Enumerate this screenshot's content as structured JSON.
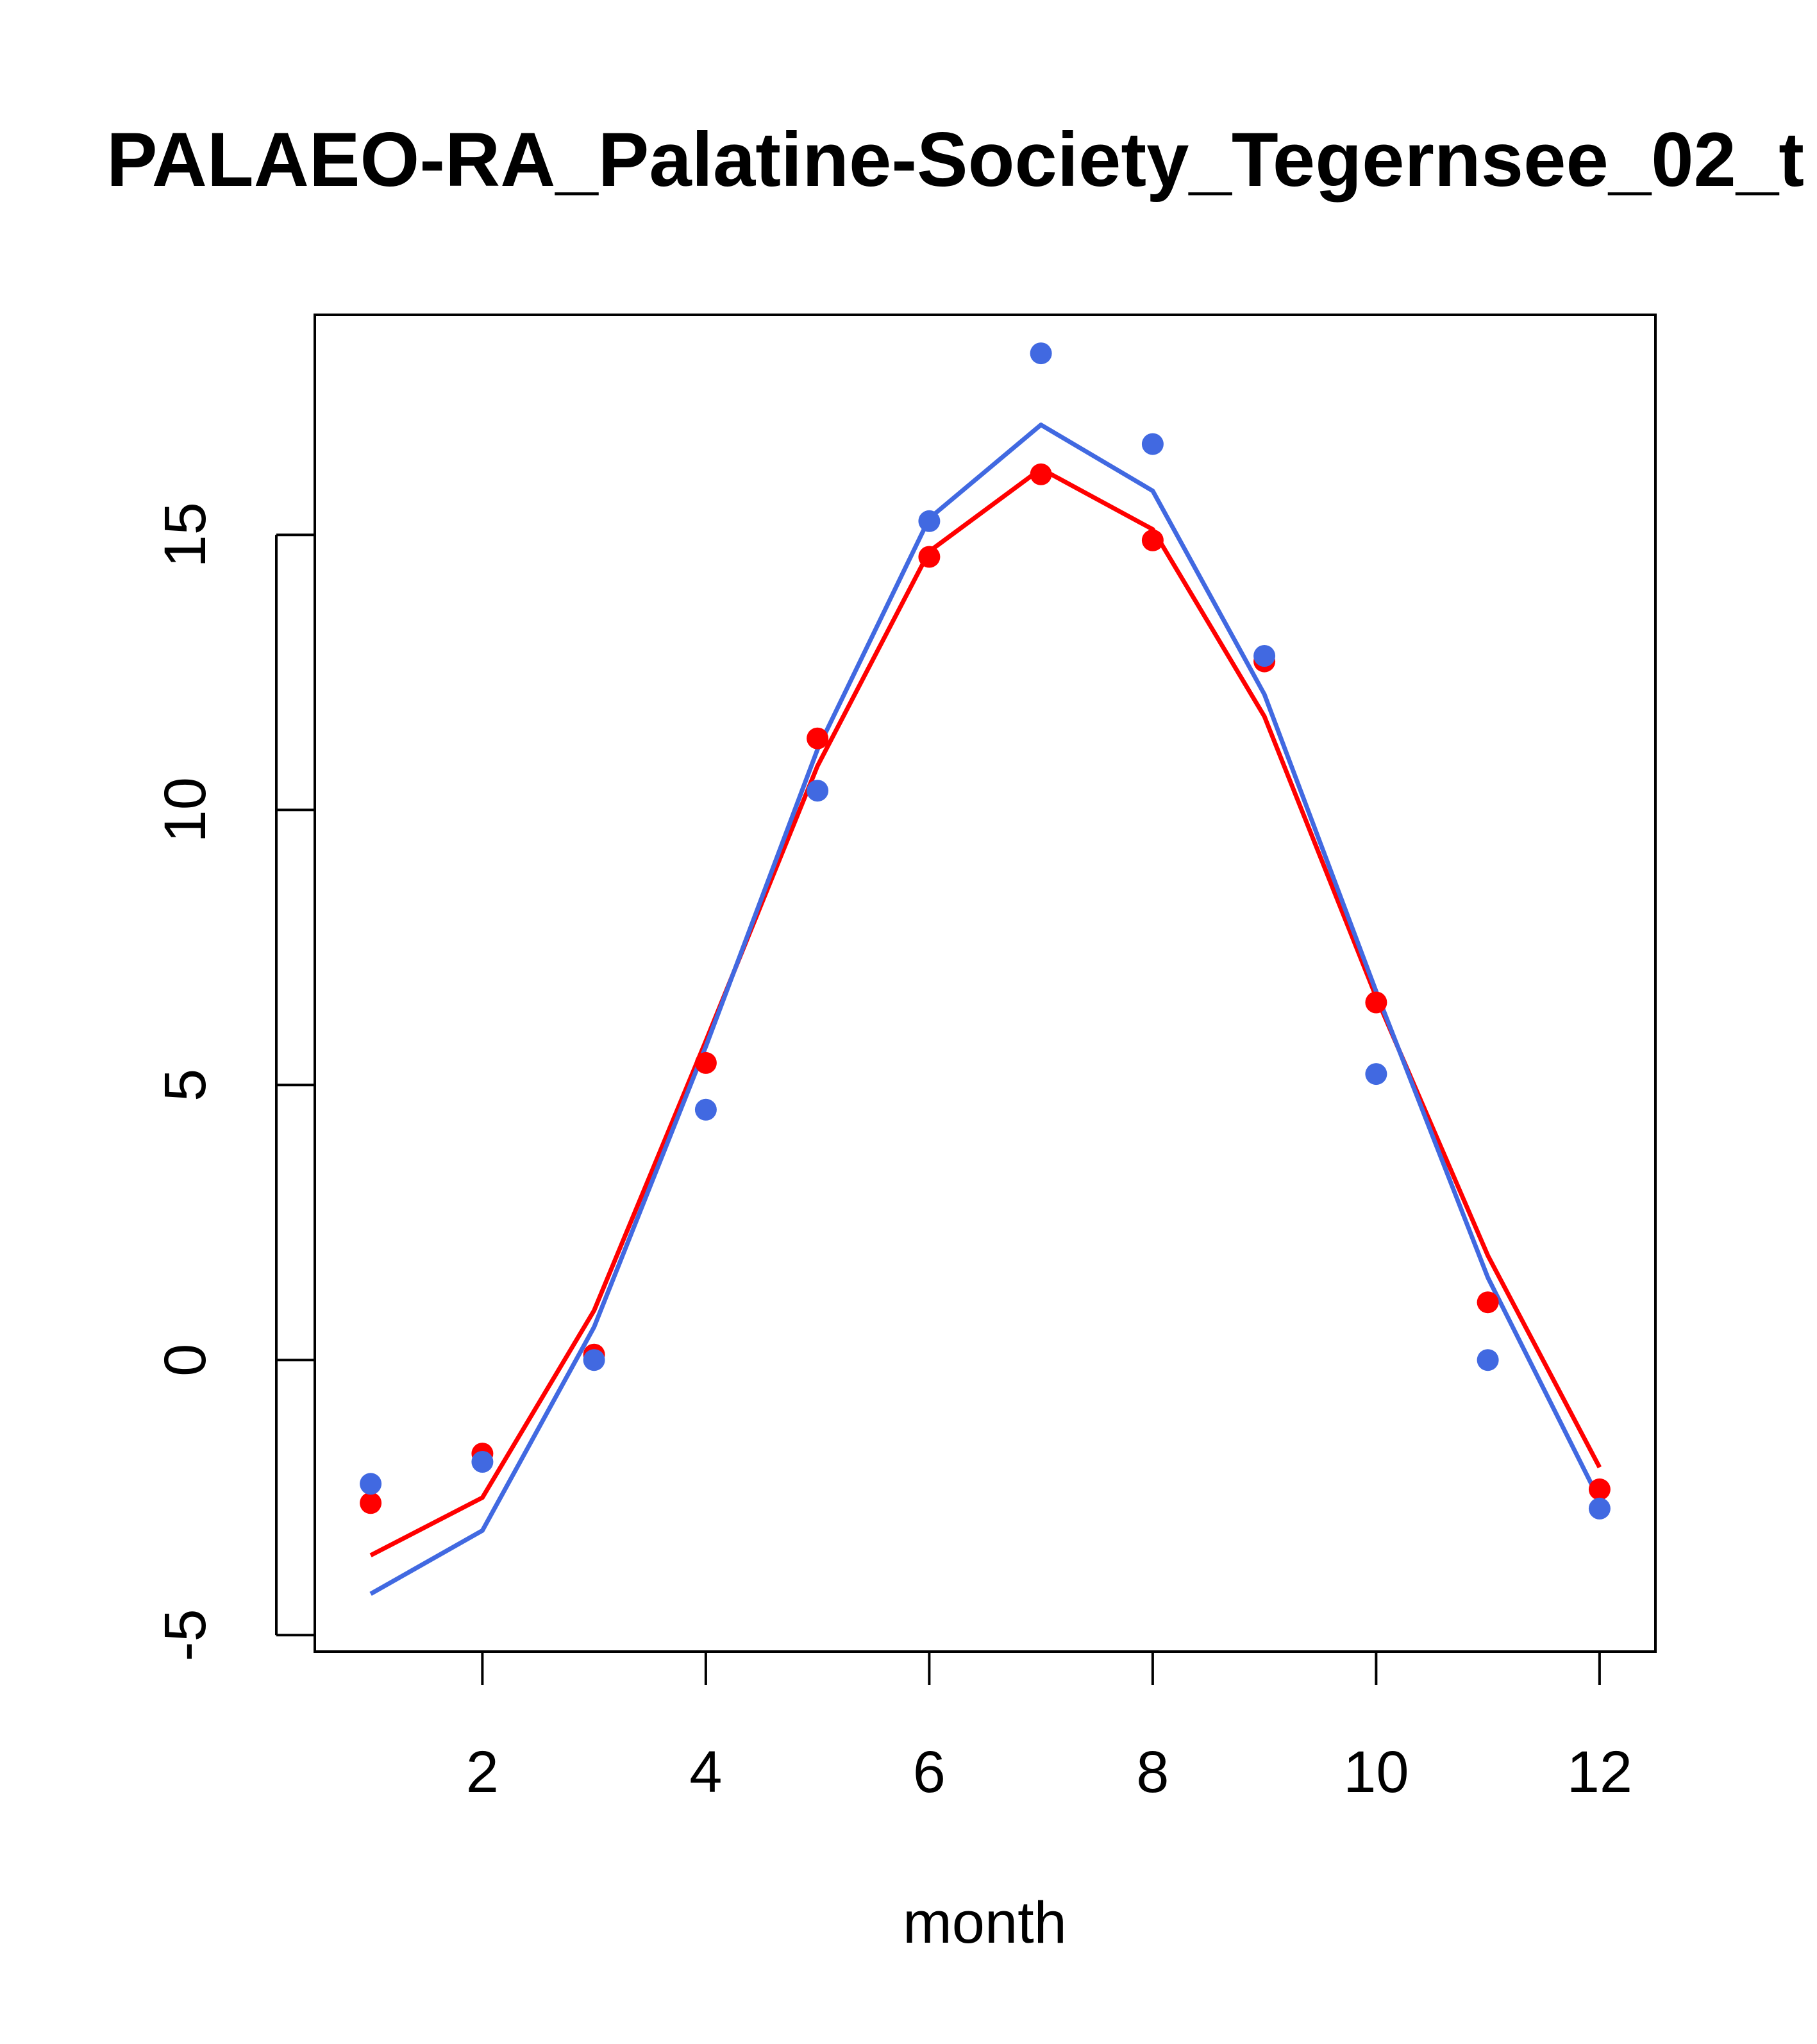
{
  "chart_data": {
    "type": "line",
    "title": "PALAEO-RA_Palatine-Society_Tegernsee_02_t",
    "xlabel": "month",
    "ylabel": "",
    "xlim": [
      0.5,
      12.5
    ],
    "ylim": [
      -5.3,
      19.0
    ],
    "x_ticks": [
      2,
      4,
      6,
      8,
      10,
      12
    ],
    "x_tick_labels": [
      "2",
      "4",
      "6",
      "8",
      "10",
      "12"
    ],
    "y_ticks": [
      -5,
      0,
      5,
      10,
      15
    ],
    "y_tick_labels": [
      "-5",
      "0",
      "5",
      "10",
      "15"
    ],
    "grid": false,
    "x": [
      1,
      2,
      3,
      4,
      5,
      6,
      7,
      8,
      9,
      10,
      11,
      12
    ],
    "series": [
      {
        "color": "#ff0000",
        "points": [
          -2.6,
          -1.7,
          0.1,
          5.4,
          11.3,
          14.6,
          16.1,
          14.9,
          12.7,
          6.5,
          1.05,
          -2.35
        ],
        "line": [
          -3.55,
          -2.5,
          0.9,
          5.8,
          10.8,
          14.7,
          16.2,
          15.1,
          11.7,
          6.6,
          1.9,
          -1.95
        ]
      },
      {
        "color": "#4169e1",
        "points": [
          -2.25,
          -1.85,
          0.0,
          4.55,
          10.35,
          15.25,
          18.3,
          16.65,
          12.8,
          5.2,
          0.0,
          -2.7
        ],
        "line": [
          -4.25,
          -3.1,
          0.6,
          5.7,
          11.1,
          15.3,
          17.0,
          15.8,
          12.1,
          6.7,
          1.5,
          -2.55
        ]
      }
    ]
  }
}
